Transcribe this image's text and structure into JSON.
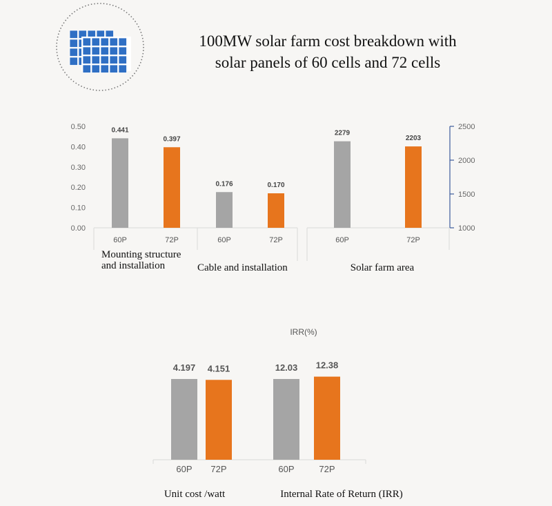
{
  "title_lines": [
    "100MW solar farm cost breakdown with",
    "solar panels of 60 cells and 72 cells"
  ],
  "colors": {
    "p60": "#a5a5a5",
    "p72": "#e7751d",
    "axis_right": "#3b5a9a"
  },
  "chart_data": [
    {
      "type": "bar",
      "groups": [
        {
          "label": "Mounting structure and installation",
          "axis": "left",
          "categories": [
            "60P",
            "72P"
          ],
          "values": [
            0.441,
            0.397
          ],
          "value_labels": [
            "0.441",
            "0.397"
          ]
        },
        {
          "label": "Cable and installation",
          "axis": "left",
          "categories": [
            "60P",
            "72P"
          ],
          "values": [
            0.176,
            0.17
          ],
          "value_labels": [
            "0.176",
            "0.170"
          ]
        },
        {
          "label": "Solar farm area",
          "axis": "right",
          "categories": [
            "60P",
            "72P"
          ],
          "values": [
            2279,
            2203
          ],
          "value_labels": [
            "2279",
            "2203"
          ]
        }
      ],
      "left_axis": {
        "ylim": [
          0,
          0.5
        ],
        "ticks": [
          "0.00",
          "0.10",
          "0.20",
          "0.30",
          "0.40",
          "0.50"
        ]
      },
      "right_axis": {
        "ylim": [
          1000,
          2500
        ],
        "ticks": [
          "1000",
          "1500",
          "2000",
          "2500"
        ]
      }
    },
    {
      "type": "bar",
      "title": "IRR(%)",
      "groups": [
        {
          "label": "Unit cost /watt",
          "categories": [
            "60P",
            "72P"
          ],
          "values": [
            4.197,
            4.151
          ],
          "value_labels": [
            "4.197",
            "4.151"
          ]
        },
        {
          "label": "Internal Rate of Return (IRR)",
          "categories": [
            "60P",
            "72P"
          ],
          "values": [
            12.03,
            12.38
          ],
          "value_labels": [
            "12.03",
            "12.38"
          ]
        }
      ]
    }
  ]
}
